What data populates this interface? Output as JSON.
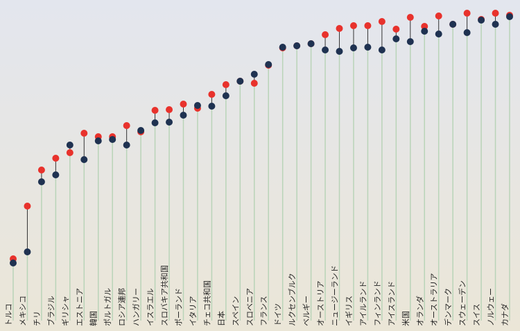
{
  "chart_data": {
    "type": "dot",
    "categories": [
      "トルコ",
      "メキシコ",
      "チリ",
      "ブラジル",
      "ギリシャ",
      "エストニア",
      "韓国",
      "ポルトガル",
      "ロシア連邦",
      "ハンガリー",
      "イスラエル",
      "スロバキア共和国",
      "ポーランド",
      "イタリア",
      "チェコ共和国",
      "日本",
      "スペイン",
      "スロベニア",
      "フランス",
      "ドイツ",
      "ルクセンブルク",
      "ベルギー",
      "オーストリア",
      "ニュージーランド",
      "イギリス",
      "アイルランド",
      "フィンランド",
      "アイスランド",
      "米国",
      "オランダ",
      "オーストラリア",
      "デンマーク",
      "スウェーデン",
      "スイス",
      "ノルウェー",
      "カナダ"
    ],
    "series": [
      {
        "color": "#e8322c",
        "values": [
          27,
          103,
          155,
          172,
          180,
          208,
          203,
          203,
          219,
          210,
          241,
          242,
          250,
          244,
          264,
          278,
          283,
          280,
          306,
          331,
          334,
          337,
          350,
          359,
          363,
          363,
          369,
          358,
          375,
          362,
          377,
          365,
          381,
          372,
          381,
          378
        ]
      },
      {
        "color": "#1f3251",
        "values": [
          21,
          37,
          138,
          148,
          191,
          170,
          197,
          199,
          191,
          212,
          223,
          224,
          234,
          248,
          247,
          262,
          283,
          293,
          307,
          332,
          334,
          337,
          328,
          326,
          331,
          332,
          328,
          344,
          340,
          355,
          351,
          365,
          353,
          371,
          365,
          376
        ]
      }
    ],
    "ylim": [
      0,
      400
    ]
  }
}
